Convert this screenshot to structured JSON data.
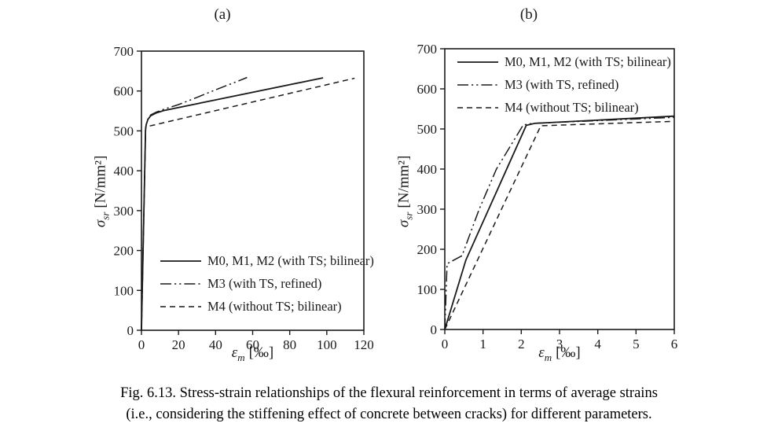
{
  "page": {
    "background": "#ffffff",
    "ink": "#1a1a1a"
  },
  "panels": [
    {
      "title": "(a)"
    },
    {
      "title": "(b)"
    }
  ],
  "caption": {
    "line1": "Fig. 6.13. Stress-strain relationships of the flexural reinforcement in terms of average strains",
    "line2": "(i.e., considering the stiffening effect of concrete between cracks) for different parameters."
  },
  "chart_data": [
    {
      "type": "line",
      "panel": "(a)",
      "xlabel": "εm [‰]",
      "ylabel": "σsr [N/mm²]",
      "xlabel_parts": {
        "symbol": "ε",
        "sub": "m",
        "unit": "[‰]"
      },
      "ylabel_parts": {
        "symbol": "σ",
        "sub": "sr",
        "unit": "[N/mm²]"
      },
      "xlim": [
        0,
        120
      ],
      "ylim": [
        0,
        700
      ],
      "xticks": [
        0,
        20,
        40,
        60,
        80,
        100,
        120
      ],
      "yticks": [
        0,
        100,
        200,
        300,
        400,
        500,
        600,
        700
      ],
      "grid": false,
      "legend_position": "inside-lower-left",
      "series": [
        {
          "name": "M0, M1, M2 (with TS; bilinear)",
          "line_style": "solid",
          "color": "#1a1a1a",
          "points": [
            [
              0,
              0
            ],
            [
              2.2,
              503
            ],
            [
              2.6,
              516
            ],
            [
              3.5,
              529
            ],
            [
              5,
              538
            ],
            [
              8,
              545
            ],
            [
              12,
              551
            ],
            [
              98,
              633
            ]
          ]
        },
        {
          "name": "M3 (with TS, refined)",
          "line_style": "dash-dot-dot",
          "color": "#1a1a1a",
          "points": [
            [
              0,
              0
            ],
            [
              2.2,
              503
            ],
            [
              2.6,
              516
            ],
            [
              3.5,
              530
            ],
            [
              5,
              540
            ],
            [
              8,
              547
            ],
            [
              12,
              554
            ],
            [
              20,
              566
            ],
            [
              30,
              584
            ],
            [
              40,
              603
            ],
            [
              50,
              621
            ],
            [
              57,
              634
            ]
          ]
        },
        {
          "name": "M4 (without TS; bilinear)",
          "line_style": "dashed",
          "color": "#1a1a1a",
          "points": [
            [
              0,
              0
            ],
            [
              2.3,
              510
            ],
            [
              115,
              632
            ]
          ]
        }
      ]
    },
    {
      "type": "line",
      "panel": "(b)",
      "xlabel": "εm [‰]",
      "ylabel": "σsr [N/mm²]",
      "xlabel_parts": {
        "symbol": "ε",
        "sub": "m",
        "unit": "[‰]"
      },
      "ylabel_parts": {
        "symbol": "σ",
        "sub": "sr",
        "unit": "[N/mm²]"
      },
      "xlim": [
        0,
        6
      ],
      "ylim": [
        0,
        700
      ],
      "xticks": [
        0,
        1,
        2,
        3,
        4,
        5,
        6
      ],
      "yticks": [
        0,
        100,
        200,
        300,
        400,
        500,
        600,
        700
      ],
      "grid": false,
      "legend_position": "inside-upper-left",
      "series": [
        {
          "name": "M0, M1, M2 (with TS; bilinear)",
          "line_style": "solid",
          "color": "#1a1a1a",
          "points": [
            [
              0,
              0
            ],
            [
              0.55,
              173
            ],
            [
              2.13,
              509
            ],
            [
              2.35,
              514
            ],
            [
              6,
              532
            ]
          ]
        },
        {
          "name": "M3 (with TS, refined)",
          "line_style": "dash-dot-dot",
          "color": "#1a1a1a",
          "points": [
            [
              0,
              0
            ],
            [
              0.06,
              164
            ],
            [
              0.45,
              184
            ],
            [
              0.9,
              300
            ],
            [
              1.35,
              400
            ],
            [
              2.05,
              510
            ],
            [
              2.3,
              514
            ],
            [
              6,
              529
            ]
          ]
        },
        {
          "name": "M4 (without TS; bilinear)",
          "line_style": "dashed",
          "color": "#1a1a1a",
          "points": [
            [
              0,
              0
            ],
            [
              2.51,
              508
            ],
            [
              6,
              519
            ]
          ]
        }
      ]
    }
  ]
}
